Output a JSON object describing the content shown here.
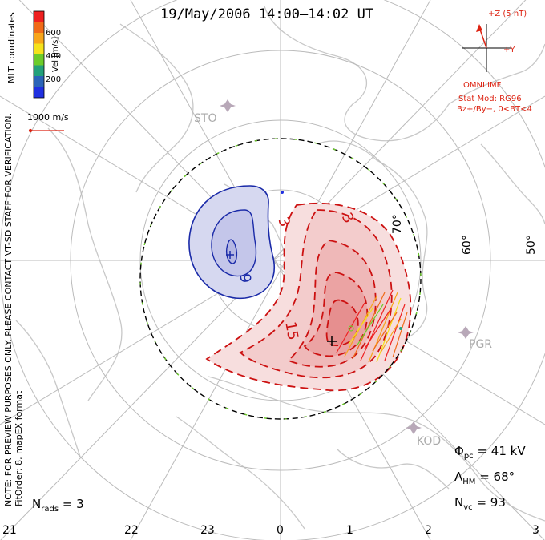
{
  "title": "19/May/2006 14:00–14:02 UT",
  "mlt_label": "MLT coordinates",
  "notes": [
    "NOTE: FOR PREVIEW PURPOSES ONLY. PLEASE CONTACT VT-SD STAFF FOR VERIFICATION.",
    "FitOrder: 8, mapEX format"
  ],
  "colorbar": {
    "label": "Vel [m/s]",
    "ticks": [
      "600",
      "400",
      "200"
    ],
    "colors": [
      "#ee2020",
      "#f06a18",
      "#f7a51a",
      "#f5e21c",
      "#6ccc2a",
      "#23a07a",
      "#2b64b8",
      "#2030e0"
    ]
  },
  "scale_vector": "1000 m/s",
  "imf": {
    "z_label": "+Z (5 nT)",
    "y_label": "+Y",
    "source": "OMNI IMF",
    "stat_line1": "Stat Mod: RG96",
    "stat_line2": "Bz+/By−, 0<BT<4"
  },
  "latitudes": [
    "70°",
    "60°",
    "50°"
  ],
  "mlt_ticks": [
    "21",
    "22",
    "23",
    "0",
    "1",
    "2",
    "3"
  ],
  "stations": [
    "STO",
    "PGR",
    "KOD"
  ],
  "contour_labels": [
    "3",
    "3",
    "9",
    "15"
  ],
  "stats": {
    "n_rads": {
      "symbol": "N",
      "sub": "rads",
      "value": "= 3"
    },
    "phi_pc": {
      "symbol": "Φ",
      "sub": "pc",
      "value": "= 41 kV"
    },
    "lambda_hm": {
      "symbol": "Λ",
      "sub": "HM",
      "value": "= 68°"
    },
    "n_vc": {
      "symbol": "N",
      "sub": "vc",
      "value": "= 93"
    }
  },
  "colors": {
    "positive": "#cc1111",
    "negative": "#1a2aa8",
    "grid": "#bbbbbb",
    "coast": "#c8c8c8",
    "imf": "#d21"
  }
}
